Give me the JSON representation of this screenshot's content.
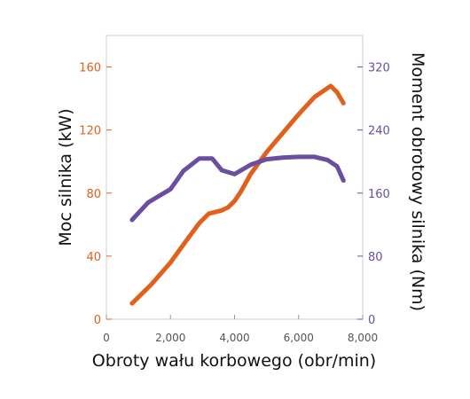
{
  "chart_data": {
    "type": "line",
    "xlabel": "Obroty wału korbowego (obr/min)",
    "ylabel_left": "Moc silnika (kW)",
    "ylabel_right": "Moment obrotowy silnika (Nm)",
    "xlim": [
      0,
      8000
    ],
    "ylim_left": [
      0,
      180
    ],
    "ylim_right": [
      0,
      360
    ],
    "x_ticks": [
      0,
      2000,
      4000,
      6000,
      8000
    ],
    "x_tick_labels": [
      "0",
      "2,000",
      "4,000",
      "6,000",
      "8,000"
    ],
    "y_left_ticks": [
      0,
      40,
      80,
      120,
      160
    ],
    "y_right_ticks": [
      0,
      80,
      160,
      240,
      320
    ],
    "grid": false,
    "series": [
      {
        "axis": "left",
        "color": "#e0601c",
        "x": [
          800,
          1400,
          2000,
          2500,
          2900,
          3200,
          3600,
          3800,
          4000,
          4200,
          4500,
          5000,
          5500,
          6000,
          6500,
          7000,
          7200,
          7400
        ],
        "y": [
          10,
          22,
          36,
          50,
          61,
          67,
          69,
          71,
          75,
          81,
          92,
          106,
          118,
          130,
          141,
          148,
          144,
          137
        ]
      },
      {
        "axis": "right",
        "color": "#6a4fa0",
        "x": [
          800,
          1300,
          2000,
          2400,
          2900,
          3300,
          3600,
          4000,
          4500,
          5000,
          5500,
          6000,
          6500,
          6900,
          7200,
          7400
        ],
        "y": [
          126,
          148,
          165,
          188,
          204,
          204,
          189,
          184,
          196,
          203,
          205,
          206,
          206,
          202,
          194,
          176
        ]
      }
    ]
  },
  "colors": {
    "left_axis": "#e0601c",
    "right_axis": "#6a4fa0"
  }
}
